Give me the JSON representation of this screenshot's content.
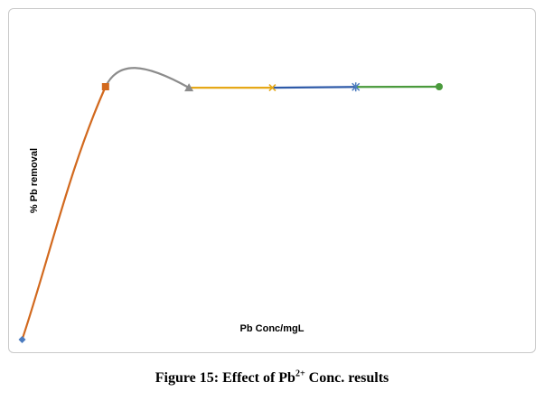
{
  "chart_data": {
    "type": "line",
    "title": "",
    "xlabel": "Pb Conc/mgL",
    "ylabel": "% Pb removal",
    "grid": false,
    "legend": "none",
    "xlim": [
      0,
      5.5
    ],
    "ylim": [
      0,
      100
    ],
    "segments": [
      {
        "x": [
          0,
          1
        ],
        "y": [
          0,
          100
        ],
        "color": "#d2691e",
        "marker": "diamond",
        "marker_color": "#4a7bbf",
        "smooth": true
      },
      {
        "x": [
          1,
          2
        ],
        "y": [
          100,
          99.6
        ],
        "color": "#8c8c8c",
        "marker": "square",
        "marker_color": "#d2691e",
        "smooth": true
      },
      {
        "x": [
          2,
          3
        ],
        "y": [
          99.6,
          99.6
        ],
        "color": "#e6a817",
        "marker": "triangle",
        "marker_color": "#8c8c8c",
        "smooth": false
      },
      {
        "x": [
          3,
          4
        ],
        "y": [
          99.6,
          99.9
        ],
        "color": "#2e5aa8",
        "marker": "x",
        "marker_color": "#e6a817",
        "smooth": false
      },
      {
        "x": [
          4,
          5
        ],
        "y": [
          99.9,
          100
        ],
        "color": "#4a9a3c",
        "marker": "star",
        "marker_color": "#4a7bbf",
        "smooth": false
      }
    ],
    "end_marker": {
      "x": 5,
      "y": 100,
      "marker": "circle",
      "color": "#4a9a3c"
    }
  },
  "caption": {
    "prefix": "Figure 15: Effect of Pb",
    "superscript": "2+",
    "suffix": " Conc. results"
  }
}
